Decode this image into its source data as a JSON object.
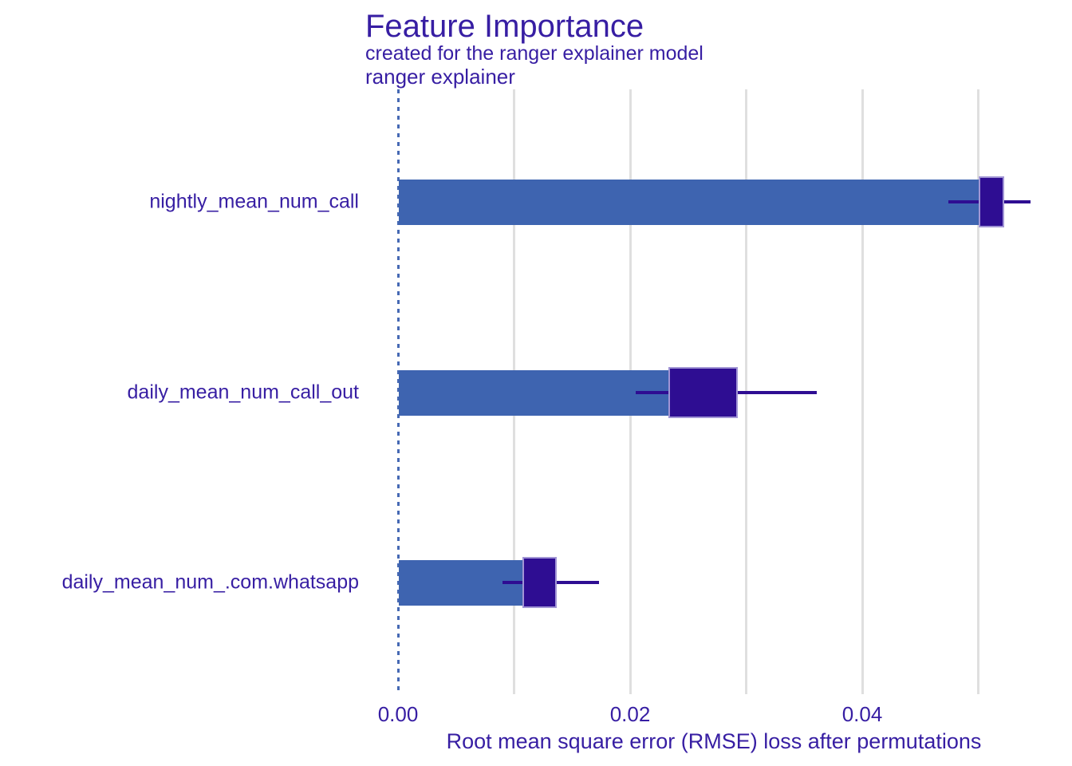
{
  "chart_data": {
    "type": "bar",
    "orientation": "horizontal",
    "title": "Feature Importance",
    "subtitle": "created for the ranger explainer model",
    "facet_label": "ranger explainer",
    "xlabel": "Root mean square error (RMSE) loss after permutations",
    "xlim": [
      0,
      0.058
    ],
    "baseline_value": 0,
    "grid": true,
    "legend": "none",
    "x_ticks": [
      {
        "value": 0.0,
        "label": "0.00"
      },
      {
        "value": 0.02,
        "label": "0.02"
      },
      {
        "value": 0.04,
        "label": "0.04"
      }
    ],
    "x_gridlines": [
      0.01,
      0.02,
      0.03,
      0.04,
      0.05
    ],
    "categories": [
      "nightly_mean_num_call",
      "daily_mean_num_call_out",
      "daily_mean_num_.com.whatsapp"
    ],
    "rows": [
      {
        "feature": "nightly_mean_num_call",
        "dropout_loss": 0.051,
        "box": {
          "q1": 0.05,
          "q3": 0.0522,
          "whisker_low": 0.0474,
          "whisker_high": 0.0545
        }
      },
      {
        "feature": "daily_mean_num_call_out",
        "dropout_loss": 0.026,
        "box": {
          "q1": 0.0233,
          "q3": 0.0293,
          "whisker_low": 0.0205,
          "whisker_high": 0.0361
        }
      },
      {
        "feature": "daily_mean_num_.com.whatsapp",
        "dropout_loss": 0.012,
        "box": {
          "q1": 0.0107,
          "q3": 0.0137,
          "whisker_low": 0.009,
          "whisker_high": 0.0173
        }
      }
    ],
    "colors": {
      "bar": "#3e64b0",
      "boxplot": "#2e0d92",
      "text": "#371ea3",
      "gridline": "#dfdfdf",
      "baseline": "#4669b4",
      "background": "#ffffff"
    }
  }
}
